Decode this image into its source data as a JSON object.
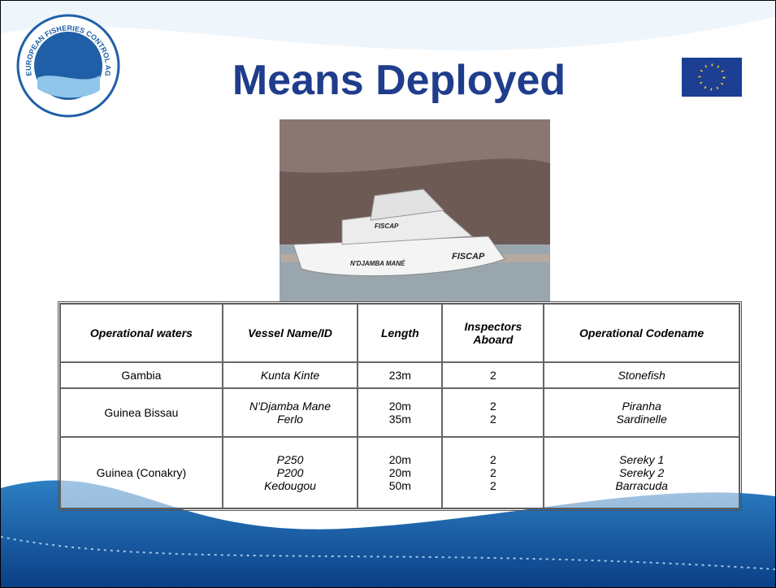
{
  "header": {
    "title": "Means Deployed",
    "logo_text": "EUROPEAN FISHERIES CONTROL AGENCY"
  },
  "photo": {
    "hull_name": "N'DJAMBA MANÉ",
    "hull_mark": "FISCAP",
    "cabin_mark": "FISCAP"
  },
  "table": {
    "columns": [
      "Operational waters",
      "Vessel Name/ID",
      "Length",
      "Inspectors Aboard",
      "Operational Codename"
    ],
    "rows": [
      [
        [
          "Gambia"
        ],
        [
          "Kunta Kinte"
        ],
        [
          "23m"
        ],
        [
          "2"
        ],
        [
          "Stonefish"
        ]
      ],
      [
        [
          "Guinea Bissau"
        ],
        [
          "N'Djamba Mane",
          "Ferlo"
        ],
        [
          "20m",
          "35m"
        ],
        [
          "2",
          "2"
        ],
        [
          "Piranha",
          "Sardinelle"
        ]
      ],
      [
        [
          "Guinea (Conakry)"
        ],
        [
          "P250",
          "P200",
          "Kedougou"
        ],
        [
          "20m",
          "20m",
          "50m"
        ],
        [
          "2",
          "2",
          "2"
        ],
        [
          "Sereky 1",
          "Sereky 2",
          "Barracuda"
        ]
      ]
    ]
  }
}
